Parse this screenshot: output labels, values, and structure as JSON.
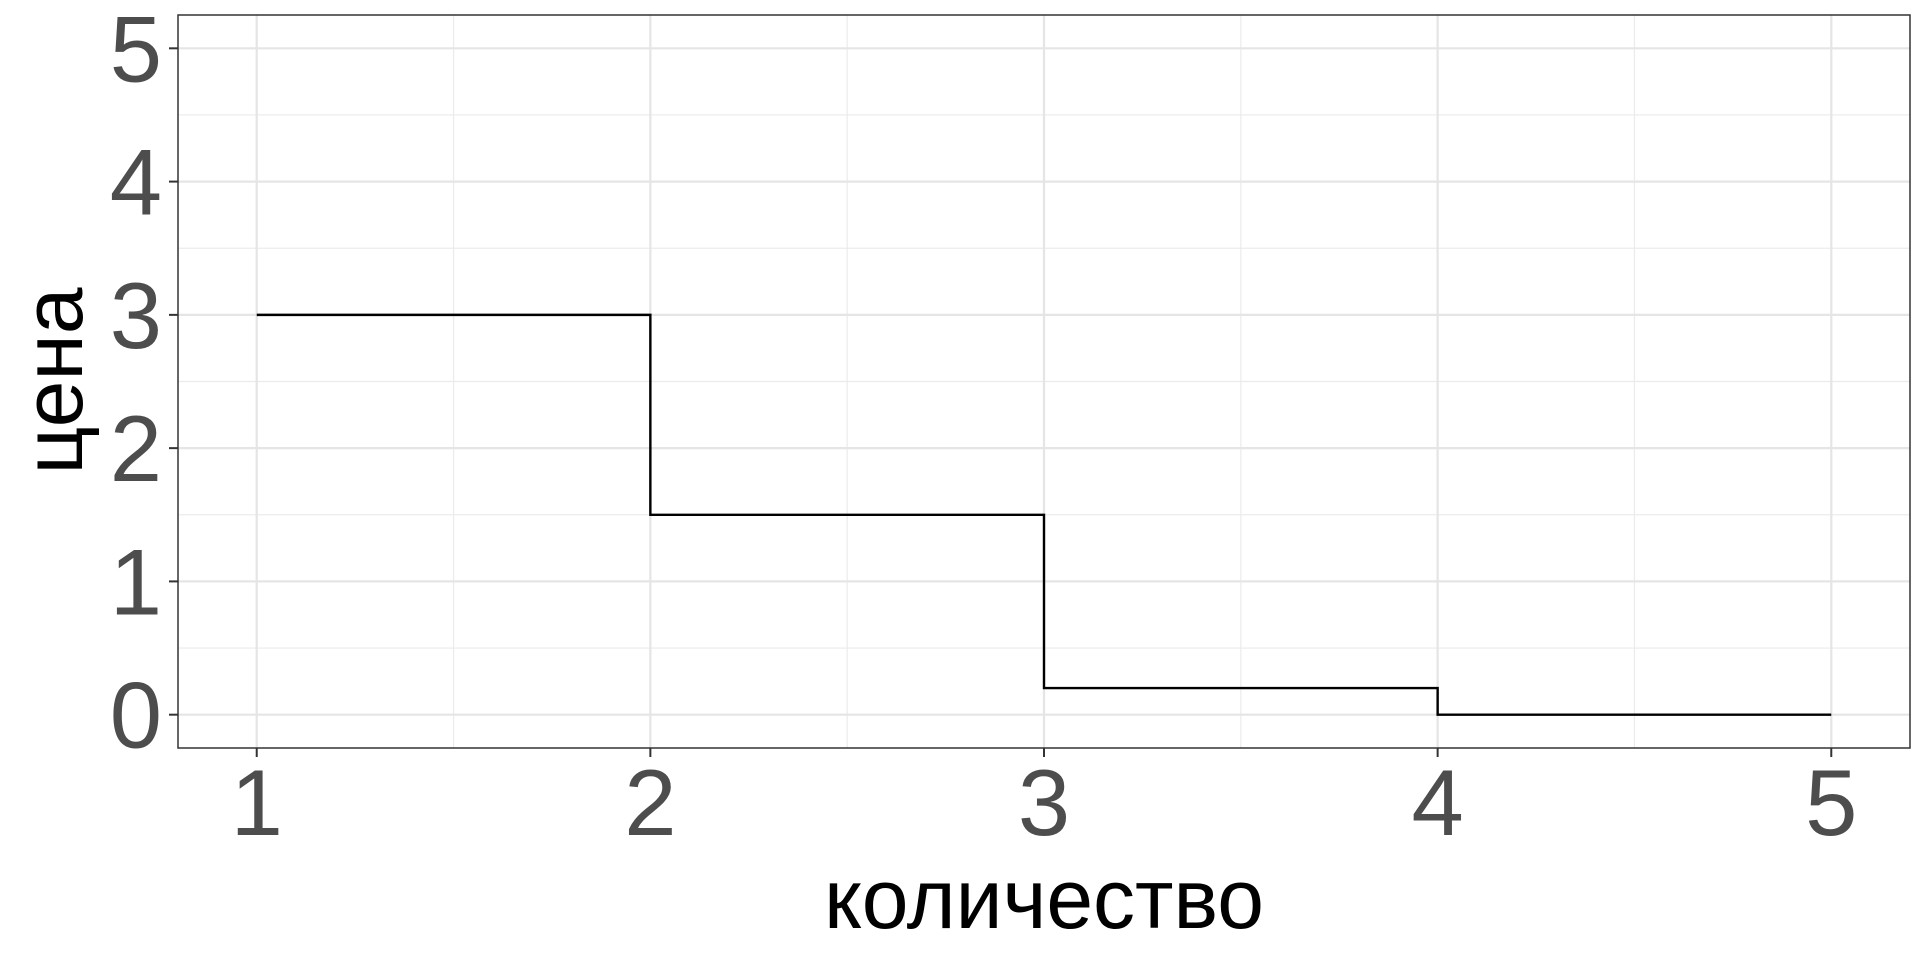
{
  "chart_data": {
    "type": "line",
    "subtype": "step",
    "title": "",
    "xlabel": "количество",
    "ylabel": "цена",
    "xlim": [
      0.8,
      5.2
    ],
    "ylim": [
      -0.25,
      5.25
    ],
    "x_ticks": [
      1,
      2,
      3,
      4,
      5
    ],
    "y_ticks": [
      0,
      1,
      2,
      3,
      4,
      5
    ],
    "x_tick_labels": [
      "1",
      "2",
      "3",
      "4",
      "5"
    ],
    "y_tick_labels": [
      "0",
      "1",
      "2",
      "3",
      "4",
      "5"
    ],
    "grid": true,
    "legend": "none",
    "series": [
      {
        "x": [
          1,
          2,
          3,
          4,
          5
        ],
        "y": [
          3,
          1.5,
          0.2,
          0,
          0
        ],
        "color": "#000000"
      }
    ]
  }
}
